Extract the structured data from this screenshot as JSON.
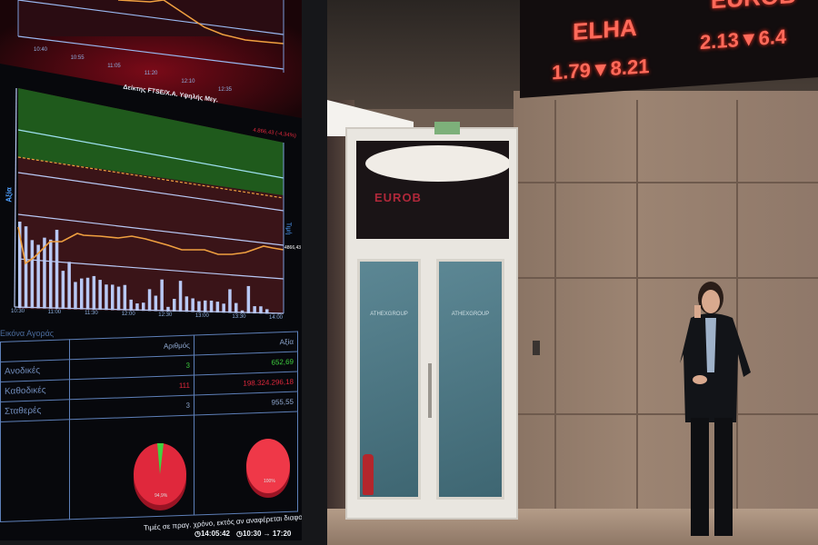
{
  "monitor": {
    "top_chart": {
      "ticks": [
        "10:40",
        "10:55",
        "11:05",
        "11:20",
        "12:10",
        "12:35"
      ]
    },
    "index_chart": {
      "title": "Δείκτης FTSE/Χ.Α. Υψηλής Μεγ.",
      "change_label": "4.866,43 (-4,34%)",
      "left_axis_label": "Αξία",
      "right_axis_label": "Τιμή",
      "last_value": "4866,43",
      "ticks": [
        "10:30",
        "11:00",
        "11:30",
        "12:00",
        "12:30",
        "13:00",
        "13:30",
        "14:00"
      ],
      "colors": {
        "up_zone": "#1f5a1c",
        "down_zone": "#3a1418",
        "price_line": "#f0a040",
        "volume_bars": "#b8c8f4"
      }
    },
    "market_table": {
      "title": "Εικόνα Αγοράς",
      "headers": [
        "",
        "Αριθμός",
        "Αξία"
      ],
      "rows": [
        {
          "label": "Ανοδικές",
          "count": "3",
          "value": "652,69",
          "status": "up"
        },
        {
          "label": "Καθοδικές",
          "count": "111",
          "value": "198.324.296,18",
          "status": "down"
        },
        {
          "label": "Σταθερές",
          "count": "3",
          "value": "955,55",
          "status": "flat"
        }
      ],
      "pie_labels": [
        "94,9%",
        "100%"
      ]
    },
    "footer": {
      "note": "Τιμές σε πραγ. χρόνο, εκτός αν αναφέρεται διαφορετικά",
      "clock": "14:05:42",
      "session": "10:30 → 17:20"
    }
  },
  "ticker_board": {
    "items": [
      {
        "symbol": "ELHA",
        "price": "1.79",
        "change": "8.21",
        "direction": "down"
      },
      {
        "symbol": "EUROB",
        "price": "2.13",
        "change": "6.4",
        "direction": "down"
      }
    ],
    "color": "#ff6a5a"
  },
  "door": {
    "glass_text": "ATHEXGROUP",
    "reflection_text": "EUROB"
  }
}
